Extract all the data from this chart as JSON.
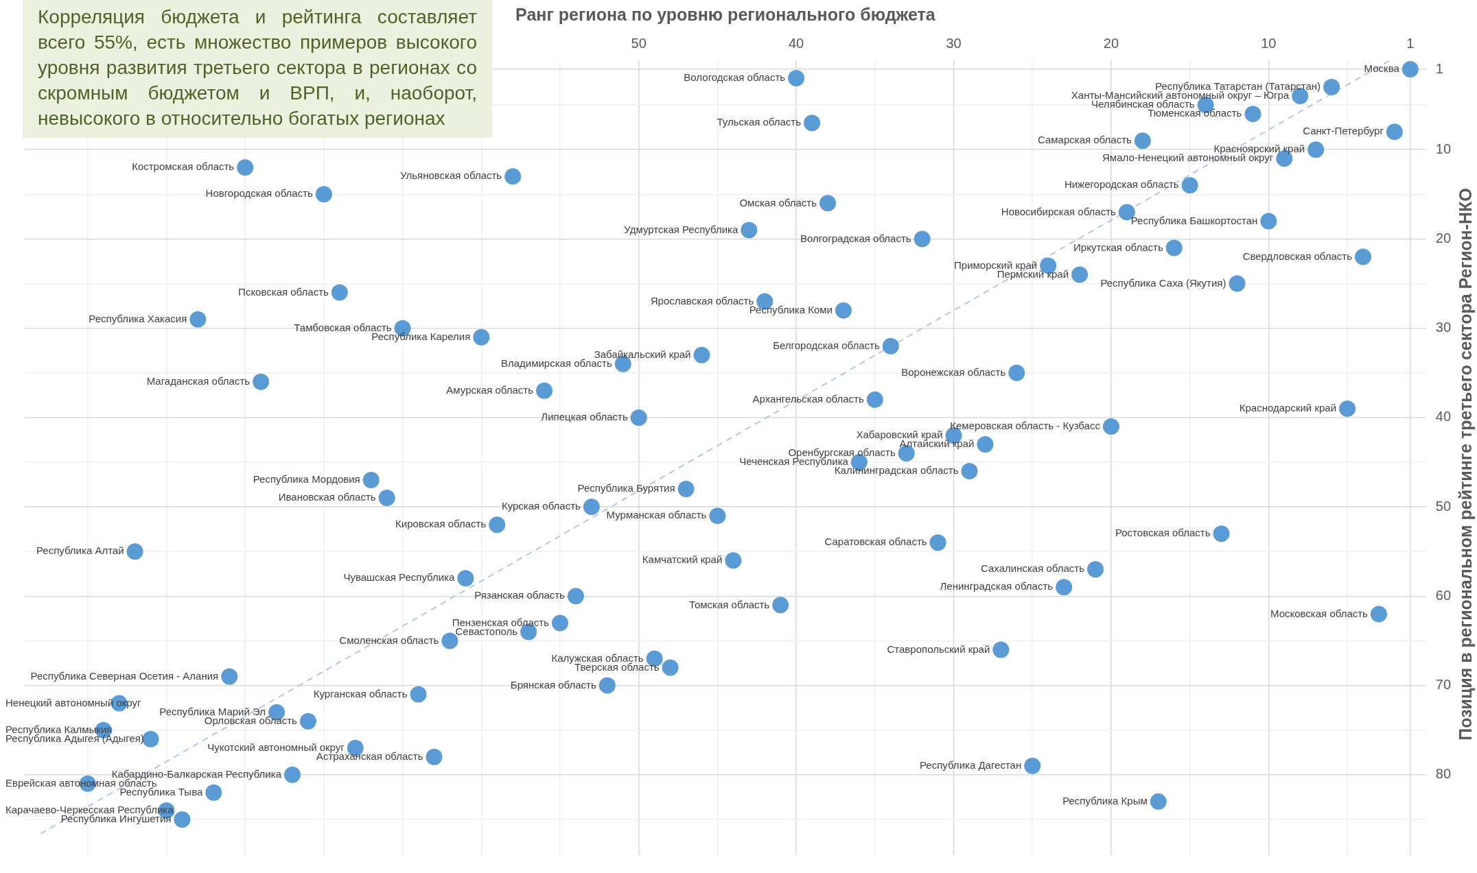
{
  "chart_data": {
    "type": "scatter",
    "xlabel": "Ранг региона по уровню регионального бюджета",
    "ylabel": "Позиция в региональном рейтинге третьего сектора Регион-НКО",
    "xlim": [
      89,
      0
    ],
    "ylim": [
      89,
      0
    ],
    "xticks": [
      1,
      {
        "value": 5,
        "label": null
      },
      10,
      {
        "value": 15,
        "label": null
      },
      20,
      {
        "value": 25,
        "label": null
      },
      30,
      {
        "value": 35,
        "label": null
      },
      40,
      {
        "value": 45,
        "label": null
      },
      50,
      {
        "value": 55,
        "label": null
      },
      {
        "value": 60,
        "label": null
      },
      {
        "value": 65,
        "label": null
      },
      {
        "value": 70,
        "label": null
      },
      {
        "value": 75,
        "label": null
      },
      {
        "value": 80,
        "label": null
      },
      {
        "value": 85,
        "label": null
      }
    ],
    "yticks": [
      1,
      {
        "value": 5,
        "label": null
      },
      10,
      {
        "value": 15,
        "label": null
      },
      20,
      {
        "value": 25,
        "label": null
      },
      30,
      {
        "value": 35,
        "label": null
      },
      40,
      {
        "value": 45,
        "label": null
      },
      50,
      {
        "value": 55,
        "label": null
      },
      60,
      {
        "value": 65,
        "label": null
      },
      70,
      {
        "value": 75,
        "label": null
      },
      80,
      {
        "value": 85,
        "label": null
      }
    ],
    "grid": true,
    "marker": "circle",
    "series": [
      {
        "type": "scatter",
        "color": "#5b9bd5",
        "x": [
          1,
          6,
          8,
          14,
          11,
          2,
          18,
          7,
          9,
          15,
          19,
          10,
          16,
          4,
          24,
          22,
          12,
          5,
          20,
          26,
          40,
          39,
          58,
          38,
          43,
          32,
          42,
          37,
          34,
          46,
          51,
          56,
          50,
          35,
          75,
          70,
          69,
          78,
          65,
          60,
          74,
          67,
          66,
          59,
          82,
          61,
          62,
          76,
          83,
          73,
          71,
          64,
          84,
          81,
          68,
          63,
          72,
          85,
          77,
          80,
          79,
          30,
          28,
          33,
          36,
          29,
          47,
          53,
          45,
          31,
          44,
          54,
          41,
          55,
          57,
          49,
          48,
          52,
          13,
          21,
          23,
          3,
          27,
          25,
          17
        ],
        "values": [
          1,
          3,
          4,
          5,
          6,
          8,
          9,
          10,
          11,
          14,
          17,
          18,
          21,
          22,
          23,
          24,
          25,
          39,
          41,
          35,
          2,
          7,
          13,
          16,
          19,
          20,
          27,
          28,
          32,
          33,
          34,
          37,
          40,
          38,
          12,
          15,
          26,
          29,
          30,
          31,
          36,
          47,
          49,
          52,
          55,
          58,
          65,
          69,
          72,
          73,
          74,
          71,
          75,
          76,
          77,
          78,
          80,
          81,
          82,
          84,
          85,
          42,
          43,
          44,
          45,
          46,
          48,
          50,
          51,
          54,
          56,
          60,
          61,
          63,
          64,
          67,
          68,
          70,
          53,
          57,
          59,
          62,
          66,
          79,
          83
        ]
      },
      {
        "type": "line",
        "color": "#b4c7e7",
        "line_style": "dashed",
        "marker": "none",
        "x": [
          88,
          2.3
        ],
        "values": [
          86.6,
          0
        ]
      }
    ],
    "annotations": [
      "Корреляция бюджета и рейтинга составляет всего 55%, есть множество примеров высокого уровня развития третьего сектора в регионах со скромным бюджетом и ВРП, и, наоборот, невысокого в относительно богатых регионах",
      {
        "text": "Москва",
        "x": 1,
        "y": 1
      },
      {
        "text": "Республика Татарстан (Татарстан)",
        "x": 6,
        "y": 3
      },
      {
        "text": "Ханты-Мансийский автономный округ – Югра",
        "x": 8,
        "y": 4
      },
      {
        "text": "Челябинская область",
        "x": 14,
        "y": 5
      },
      {
        "text": "Тюменская область",
        "x": 11,
        "y": 6
      },
      {
        "text": "Санкт-Петербург",
        "x": 2,
        "y": 8
      },
      {
        "text": "Самарская область",
        "x": 18,
        "y": 9
      },
      {
        "text": "Красноярский край",
        "x": 7,
        "y": 10
      },
      {
        "text": "Ямало-Ненецкий автономный округ",
        "x": 9,
        "y": 11
      },
      {
        "text": "Нижегородская область",
        "x": 15,
        "y": 14
      },
      {
        "text": "Новосибирская область",
        "x": 19,
        "y": 17
      },
      {
        "text": "Республика Башкортостан",
        "x": 10,
        "y": 18
      },
      {
        "text": "Иркутская область",
        "x": 16,
        "y": 21
      },
      {
        "text": "Свердловская область",
        "x": 4,
        "y": 22
      },
      {
        "text": "Приморский край",
        "x": 24,
        "y": 23
      },
      {
        "text": "Пермский край",
        "x": 22,
        "y": 24
      },
      {
        "text": "Республика Саха (Якутия)",
        "x": 12,
        "y": 25
      },
      {
        "text": "Краснодарский край",
        "x": 5,
        "y": 39
      },
      {
        "text": "Кемеровская область - Кузбасс",
        "x": 20,
        "y": 41
      },
      {
        "text": "Воронежская область",
        "x": 26,
        "y": 35
      },
      {
        "text": "Вологодская область",
        "x": 40,
        "y": 2
      },
      {
        "text": "Тульская область",
        "x": 39,
        "y": 7
      },
      {
        "text": "Ульяновская область",
        "x": 58,
        "y": 13
      },
      {
        "text": "Омская область",
        "x": 38,
        "y": 16
      },
      {
        "text": "Удмуртская Республика",
        "x": 43,
        "y": 19
      },
      {
        "text": "Волгоградская область",
        "x": 32,
        "y": 20
      },
      {
        "text": "Ярославская область",
        "x": 42,
        "y": 27
      },
      {
        "text": "Республика Коми",
        "x": 37,
        "y": 28
      },
      {
        "text": "Белгородская область",
        "x": 34,
        "y": 32
      },
      {
        "text": "Забайкальский край",
        "x": 46,
        "y": 33
      },
      {
        "text": "Владимирская область",
        "x": 51,
        "y": 34
      },
      {
        "text": "Амурская область",
        "x": 56,
        "y": 37
      },
      {
        "text": "Липецкая область",
        "x": 50,
        "y": 40
      },
      {
        "text": "Архангельская область",
        "x": 35,
        "y": 38
      },
      {
        "text": "Костромская область",
        "x": 75,
        "y": 12
      },
      {
        "text": "Новгородская область",
        "x": 70,
        "y": 15
      },
      {
        "text": "Псковская область",
        "x": 69,
        "y": 26
      },
      {
        "text": "Республика Хакасия",
        "x": 78,
        "y": 29
      },
      {
        "text": "Тамбовская область",
        "x": 65,
        "y": 30
      },
      {
        "text": "Республика Карелия",
        "x": 60,
        "y": 31
      },
      {
        "text": "Магаданская область",
        "x": 74,
        "y": 36
      },
      {
        "text": "Республика Мордовия",
        "x": 67,
        "y": 47
      },
      {
        "text": "Ивановская область",
        "x": 66,
        "y": 49
      },
      {
        "text": "Кировская область",
        "x": 59,
        "y": 52
      },
      {
        "text": "Республика Алтай",
        "x": 82,
        "y": 55
      },
      {
        "text": "Чувашская Республика",
        "x": 61,
        "y": 58
      },
      {
        "text": "Смоленская область",
        "x": 62,
        "y": 65
      },
      {
        "text": "Республика Северная Осетия - Алания",
        "x": 76,
        "y": 69
      },
      {
        "text": "Ненецкий автономный округ",
        "x": 83,
        "y": 72
      },
      {
        "text": "Республика Марий Эл",
        "x": 73,
        "y": 73
      },
      {
        "text": "Орловская область",
        "x": 71,
        "y": 74
      },
      {
        "text": "Курганская область",
        "x": 64,
        "y": 71
      },
      {
        "text": "Республика Калмыкия",
        "x": 84,
        "y": 75
      },
      {
        "text": "Республика Адыгея (Адыгея)",
        "x": 81,
        "y": 76
      },
      {
        "text": "Чукотский автономный округ",
        "x": 68,
        "y": 77
      },
      {
        "text": "Астраханская область",
        "x": 63,
        "y": 78
      },
      {
        "text": "Кабардино-Балкарская Республика",
        "x": 72,
        "y": 80
      },
      {
        "text": "Еврейская автономная область",
        "x": 85,
        "y": 81
      },
      {
        "text": "Республика Тыва",
        "x": 77,
        "y": 82
      },
      {
        "text": "Карачаево-Черкесская Республика",
        "x": 80,
        "y": 84
      },
      {
        "text": "Республика Ингушетия",
        "x": 79,
        "y": 85
      },
      {
        "text": "Хабаровский край",
        "x": 30,
        "y": 42
      },
      {
        "text": "Алтайский край",
        "x": 28,
        "y": 43
      },
      {
        "text": "Оренбургская область",
        "x": 33,
        "y": 44
      },
      {
        "text": "Чеченская Республика",
        "x": 36,
        "y": 45
      },
      {
        "text": "Калининградская область",
        "x": 29,
        "y": 46
      },
      {
        "text": "Республика Бурятия",
        "x": 47,
        "y": 48
      },
      {
        "text": "Курская область",
        "x": 53,
        "y": 50
      },
      {
        "text": "Мурманская область",
        "x": 45,
        "y": 51
      },
      {
        "text": "Саратовская область",
        "x": 31,
        "y": 54
      },
      {
        "text": "Камчатский край",
        "x": 44,
        "y": 56
      },
      {
        "text": "Рязанская область",
        "x": 54,
        "y": 60
      },
      {
        "text": "Томская область",
        "x": 41,
        "y": 61
      },
      {
        "text": "Пензенская область",
        "x": 55,
        "y": 63
      },
      {
        "text": "Севастополь",
        "x": 57,
        "y": 64
      },
      {
        "text": "Калужская область",
        "x": 49,
        "y": 67
      },
      {
        "text": "Тверская область",
        "x": 48,
        "y": 68
      },
      {
        "text": "Брянская область",
        "x": 52,
        "y": 70
      },
      {
        "text": "Ростовская область",
        "x": 13,
        "y": 53
      },
      {
        "text": "Сахалинская область",
        "x": 21,
        "y": 57
      },
      {
        "text": "Ленинградская область",
        "x": 23,
        "y": 59
      },
      {
        "text": "Московская область",
        "x": 3,
        "y": 62
      },
      {
        "text": "Ставропольский край",
        "x": 27,
        "y": 66
      },
      {
        "text": "Республика Дагестан",
        "x": 25,
        "y": 79
      },
      {
        "text": "Республика Крым",
        "x": 17,
        "y": 83
      }
    ]
  }
}
